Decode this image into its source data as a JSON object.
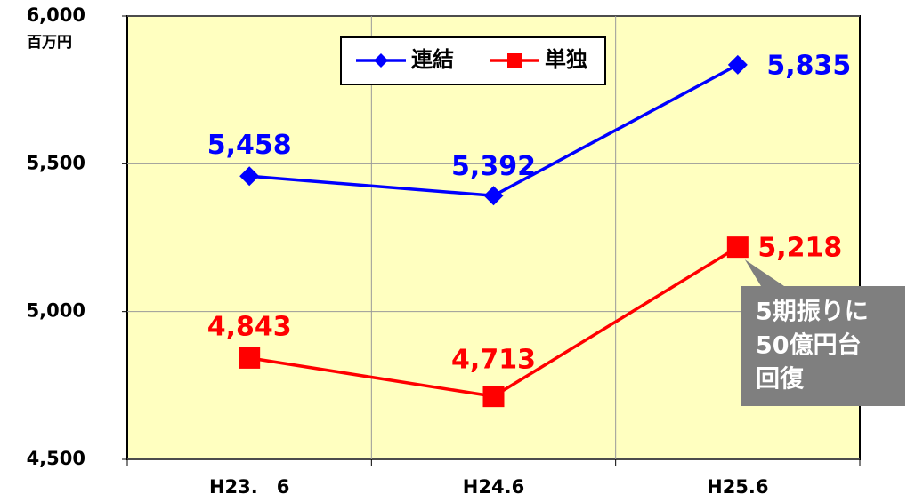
{
  "chart_data": {
    "type": "line",
    "y_unit": "百万円",
    "categories": [
      "H23.　6",
      "H24.6",
      "H25.6"
    ],
    "series": [
      {
        "name": "連結",
        "color": "#0000ff",
        "marker": "diamond",
        "values": [
          5458,
          5392,
          5835
        ],
        "value_labels": [
          "5,458",
          "5,392",
          "5,835"
        ]
      },
      {
        "name": "単独",
        "color": "#ff0000",
        "marker": "square",
        "values": [
          4843,
          4713,
          5218
        ],
        "value_labels": [
          "4,843",
          "4,713",
          "5,218"
        ]
      }
    ],
    "ylim": [
      4500,
      6000
    ],
    "yticks": [
      {
        "value": 4500,
        "label": "4,500"
      },
      {
        "value": 5000,
        "label": "5,000"
      },
      {
        "value": 5500,
        "label": "5,500"
      },
      {
        "value": 6000,
        "label": "6,000"
      }
    ],
    "grid": true,
    "legend": "top",
    "annotation": [
      "5期振りに",
      "50億円台",
      "回復"
    ]
  }
}
